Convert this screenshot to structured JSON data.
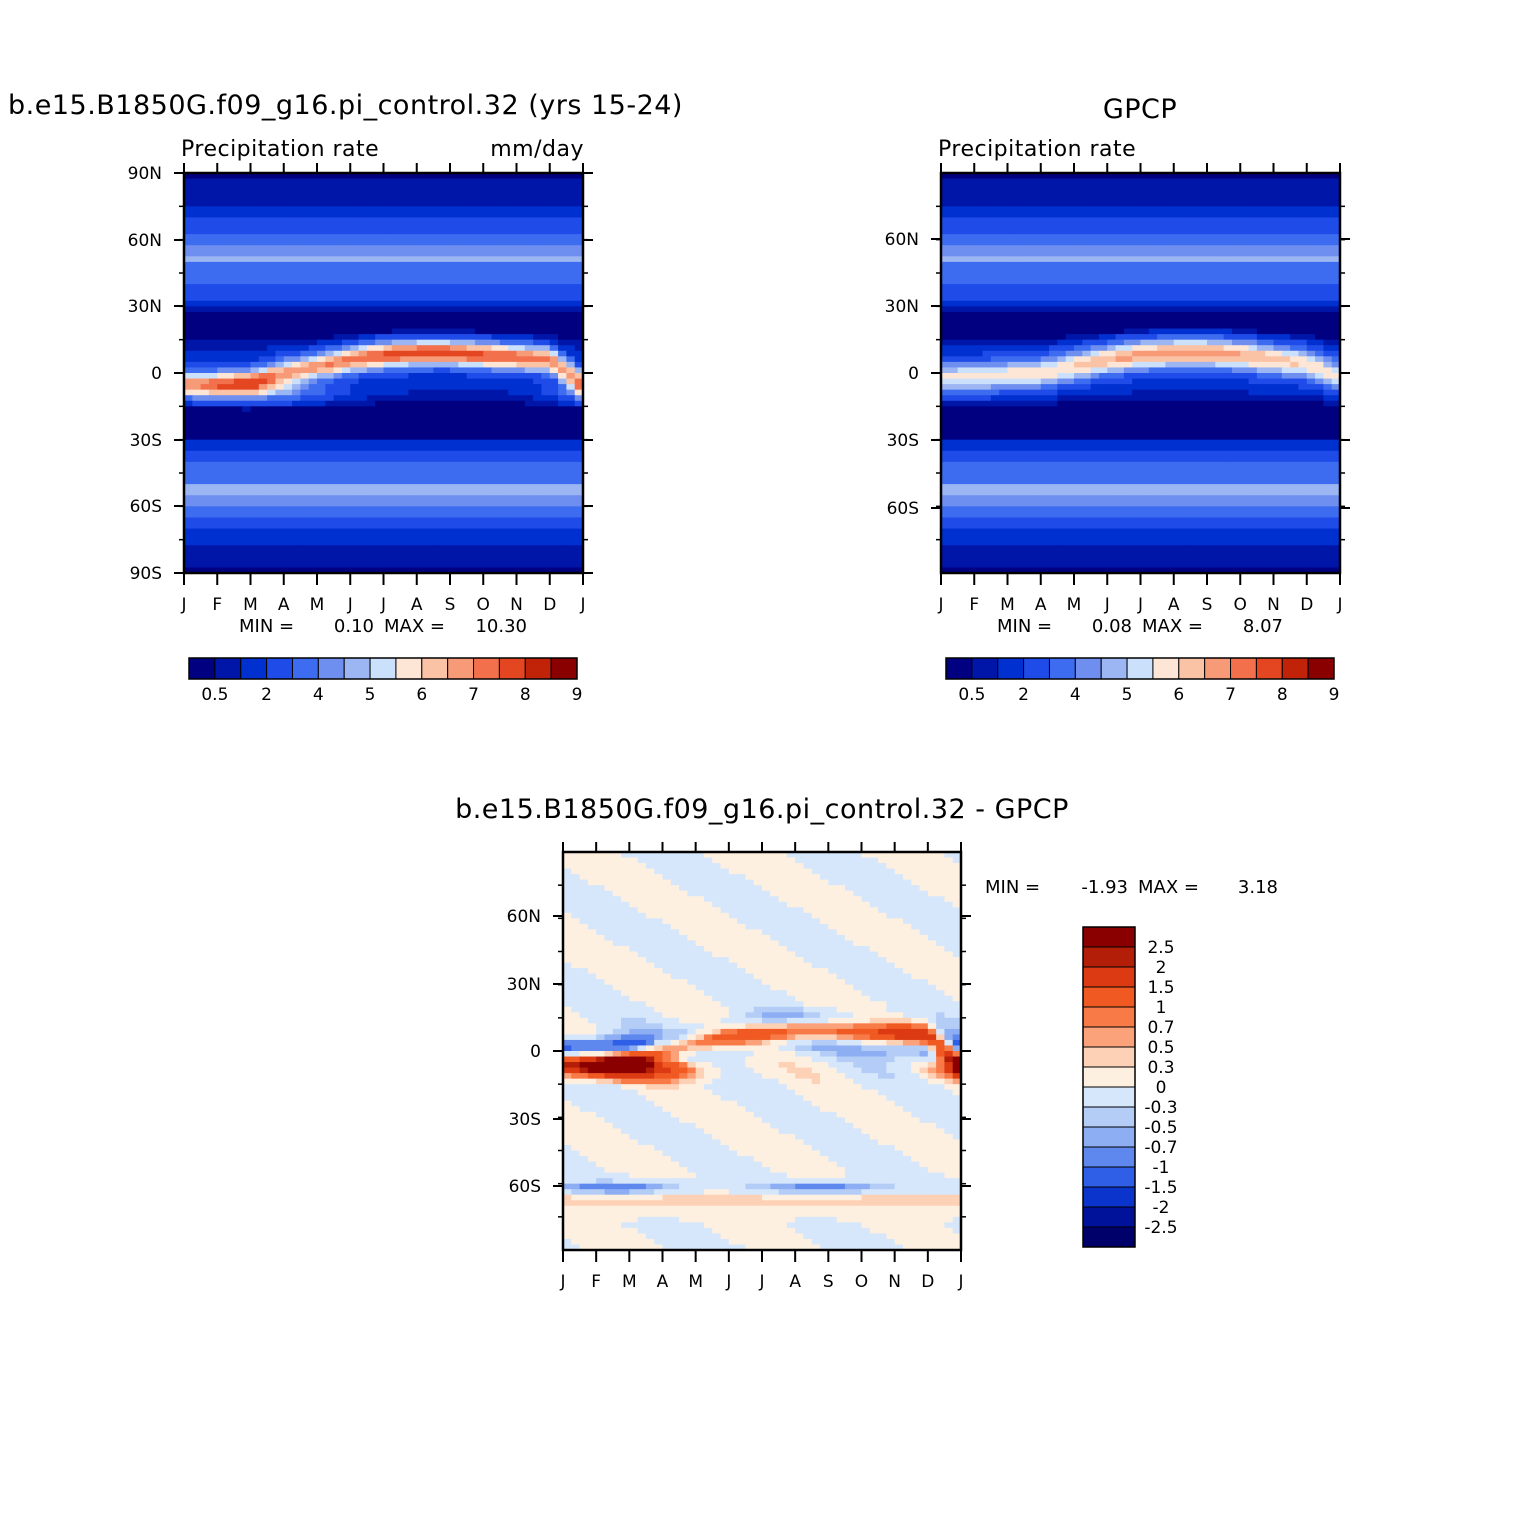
{
  "colors": {
    "abs_scale": [
      "#000080",
      "#0016a8",
      "#0030d0",
      "#1f4ce8",
      "#3d6cf0",
      "#6e8ff0",
      "#9cb6f3",
      "#cbe0fa",
      "#fde6d6",
      "#fbc3a6",
      "#f79a77",
      "#f2704b",
      "#e44622",
      "#c12308",
      "#8a0000"
    ],
    "diff_scale": [
      "#8a0000",
      "#b31e08",
      "#dc3a12",
      "#f05a22",
      "#f77a47",
      "#fba27a",
      "#fdd1b6",
      "#fef0e0",
      "#d6e7fb",
      "#b4cdf7",
      "#8eaef3",
      "#5e88ee",
      "#2f5fe6",
      "#0a34cc",
      "#00119a",
      "#00006b"
    ]
  },
  "panels": [
    {
      "id": "model",
      "title": "b.e15.B1850G.f09_g16.pi_control.32 (yrs 15-24)",
      "left_label": "Precipitation rate",
      "right_label": "mm/day",
      "min_label": "MIN =",
      "min_value": "0.10",
      "max_label": "MAX =",
      "max_value": "10.30"
    },
    {
      "id": "gpcp",
      "title": "GPCP",
      "left_label": "Precipitation rate",
      "right_label": "",
      "min_label": "MIN =",
      "min_value": "0.08",
      "max_label": "MAX =",
      "max_value": "8.07"
    },
    {
      "id": "diff",
      "title": "b.e15.B1850G.f09_g16.pi_control.32 - GPCP",
      "min_label": "MIN =",
      "min_value": "-1.93",
      "max_label": "MAX =",
      "max_value": "3.18"
    }
  ],
  "chart_data": [
    {
      "type": "heatmap",
      "title": "b.e15.B1850G.f09_g16.pi_control.32 (yrs 15-24)",
      "subtitle_left": "Precipitation rate",
      "subtitle_right": "mm/day",
      "x_tick_labels": [
        "J",
        "F",
        "M",
        "A",
        "M",
        "J",
        "J",
        "A",
        "S",
        "O",
        "N",
        "D",
        "J"
      ],
      "y_tick_labels": [
        "90N",
        "60N",
        "30N",
        "0",
        "30S",
        "60S",
        "90S"
      ],
      "ylim": [
        -90,
        90
      ],
      "colorbar_labels": [
        "0.5",
        "2",
        "4",
        "5",
        "6",
        "7",
        "8",
        "9"
      ],
      "colorbar_levels": [
        0.2,
        0.5,
        1,
        2,
        3,
        4,
        5,
        6,
        7,
        8,
        9,
        10,
        12,
        14
      ],
      "itcz_lat": [
        -5,
        -5,
        -4,
        0,
        3,
        6,
        8,
        9,
        9,
        8,
        7,
        6,
        -5
      ],
      "itcz_peak": [
        7.8,
        8.2,
        8.6,
        7.8,
        8.2,
        9.0,
        9.8,
        10.3,
        10.1,
        9.6,
        9.2,
        8.6,
        7.8
      ],
      "min": 0.1,
      "max": 10.3
    },
    {
      "type": "heatmap",
      "title": "GPCP",
      "subtitle_left": "Precipitation rate",
      "x_tick_labels": [
        "J",
        "F",
        "M",
        "A",
        "M",
        "J",
        "J",
        "A",
        "S",
        "O",
        "N",
        "D",
        "J"
      ],
      "y_tick_labels": [
        "60N",
        "30N",
        "0",
        "30S",
        "60S"
      ],
      "ylim": [
        -90,
        90
      ],
      "colorbar_labels": [
        "0.5",
        "2",
        "4",
        "5",
        "6",
        "7",
        "8",
        "9"
      ],
      "colorbar_levels": [
        0.2,
        0.5,
        1,
        2,
        3,
        4,
        5,
        6,
        7,
        8,
        9,
        10,
        12,
        14
      ],
      "itcz_lat": [
        -2,
        -2,
        -1,
        0,
        3,
        6,
        8,
        9,
        9,
        8,
        6,
        4,
        -2
      ],
      "itcz_peak": [
        5.5,
        5.8,
        6.0,
        6.2,
        6.6,
        7.3,
        7.8,
        8.07,
        8.0,
        7.6,
        7.0,
        6.3,
        5.5
      ],
      "min": 0.08,
      "max": 8.07
    },
    {
      "type": "heatmap",
      "title": "b.e15.B1850G.f09_g16.pi_control.32 - GPCP",
      "x_tick_labels": [
        "J",
        "F",
        "M",
        "A",
        "M",
        "J",
        "J",
        "A",
        "S",
        "O",
        "N",
        "D",
        "J"
      ],
      "y_tick_labels": [
        "60N",
        "30N",
        "0",
        "30S",
        "60S"
      ],
      "ylim": [
        -90,
        90
      ],
      "colorbar_labels": [
        "2.5",
        "2",
        "1.5",
        "1",
        "0.7",
        "0.5",
        "0.3",
        "0",
        "-0.3",
        "-0.5",
        "-0.7",
        "-1",
        "-1.5",
        "-2",
        "-2.5"
      ],
      "colorbar_levels": [
        -2.5,
        -2,
        -1.5,
        -1,
        -0.7,
        -0.5,
        -0.3,
        0,
        0.3,
        0.5,
        0.7,
        1,
        1.5,
        2,
        2.5
      ],
      "min": -1.93,
      "max": 3.18
    }
  ]
}
